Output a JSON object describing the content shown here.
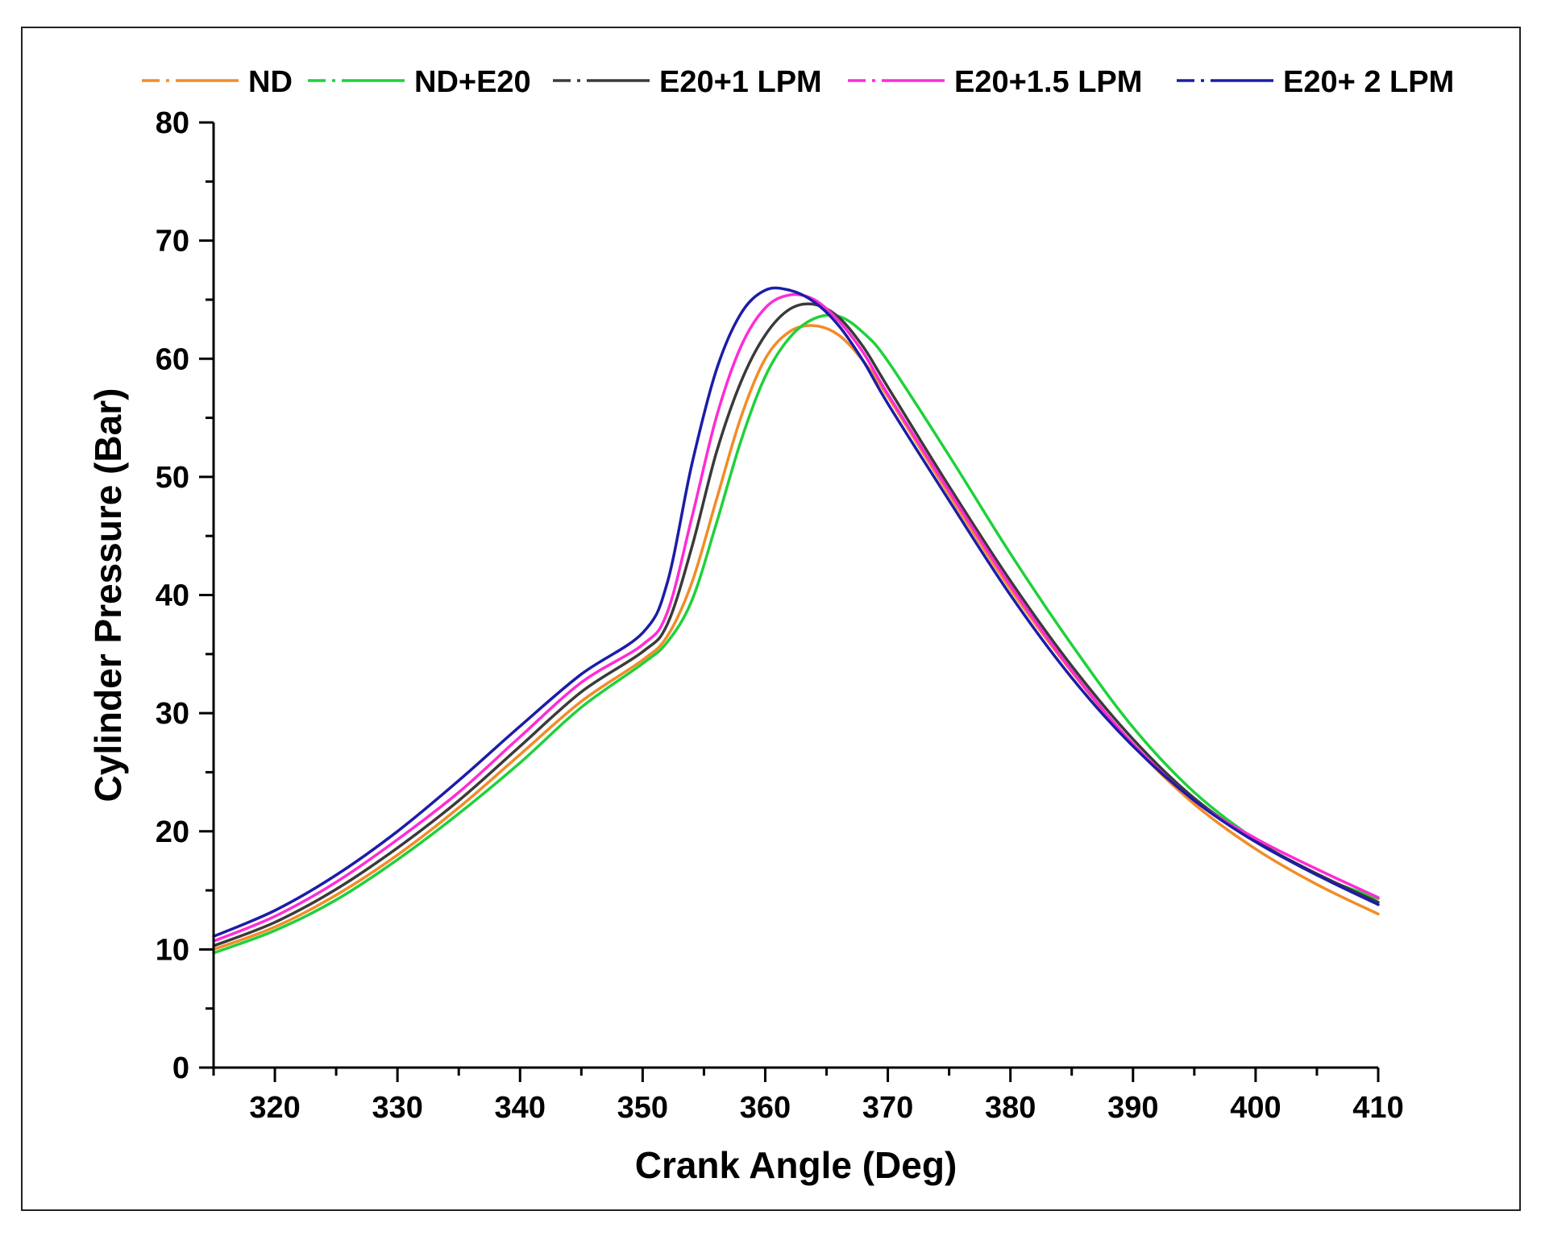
{
  "chart_data": {
    "type": "line",
    "title": "",
    "xlabel": "Crank Angle (Deg)",
    "ylabel": "Cylinder Pressure (Bar)",
    "xlim": [
      315,
      410
    ],
    "ylim": [
      0,
      80
    ],
    "xticks": [
      320,
      330,
      340,
      350,
      360,
      370,
      380,
      390,
      400,
      410
    ],
    "yticks": [
      0,
      10,
      20,
      30,
      40,
      50,
      60,
      70,
      80
    ],
    "grid": false,
    "legend_position": "top",
    "series": [
      {
        "name": "ND",
        "color": "#f28c28",
        "x": [
          315,
          320,
          325,
          330,
          335,
          340,
          345,
          350,
          352,
          354,
          356,
          358,
          360,
          362,
          364,
          366,
          368,
          370,
          375,
          380,
          385,
          390,
          395,
          400,
          405,
          410
        ],
        "y": [
          10,
          11.9,
          14.6,
          18.0,
          22.0,
          26.5,
          31.0,
          34.5,
          36.5,
          41,
          48,
          55,
          60,
          62.3,
          62.8,
          62.0,
          59.8,
          56.8,
          48.5,
          40.5,
          33.5,
          27.3,
          22.3,
          18.5,
          15.5,
          13.0
        ]
      },
      {
        "name": "ND+E20",
        "color": "#1fd13a",
        "x": [
          315,
          320,
          325,
          330,
          335,
          340,
          345,
          350,
          352,
          354,
          356,
          358,
          360,
          362,
          364,
          366,
          368,
          370,
          375,
          380,
          385,
          390,
          395,
          400,
          405,
          410
        ],
        "y": [
          9.7,
          11.6,
          14.2,
          17.6,
          21.5,
          25.8,
          30.5,
          34.2,
          36,
          39.5,
          46,
          53,
          58.5,
          61.8,
          63.4,
          63.6,
          62.2,
          59.8,
          51.8,
          43.5,
          35.8,
          28.8,
          23.3,
          19.3,
          16.3,
          14.3
        ]
      },
      {
        "name": "E20+1 LPM",
        "color": "#3a3a3a",
        "x": [
          315,
          320,
          325,
          330,
          335,
          340,
          345,
          350,
          352,
          354,
          356,
          358,
          360,
          362,
          364,
          366,
          368,
          370,
          375,
          380,
          385,
          390,
          395,
          400,
          405,
          410
        ],
        "y": [
          10.3,
          12.3,
          15.1,
          18.6,
          22.6,
          27.2,
          31.8,
          35.2,
          37.5,
          44,
          52,
          58,
          62,
          64.2,
          64.6,
          63.5,
          61.0,
          57.6,
          49.2,
          41.2,
          34.0,
          27.8,
          22.8,
          19.2,
          16.4,
          14.0
        ]
      },
      {
        "name": "E20+1.5 LPM",
        "color": "#ff2bd6",
        "x": [
          315,
          320,
          325,
          330,
          335,
          340,
          345,
          350,
          352,
          354,
          356,
          358,
          360,
          362,
          364,
          366,
          368,
          370,
          375,
          380,
          385,
          390,
          395,
          400,
          405,
          410
        ],
        "y": [
          10.7,
          12.8,
          15.7,
          19.3,
          23.3,
          28.0,
          32.6,
          35.8,
          38.5,
          46.5,
          55,
          61,
          64.3,
          65.4,
          65.0,
          63.2,
          60.5,
          57.0,
          48.8,
          40.8,
          33.6,
          27.4,
          22.6,
          19.4,
          16.8,
          14.4
        ]
      },
      {
        "name": "E20+ 2 LPM",
        "color": "#1c1ca8",
        "x": [
          315,
          320,
          325,
          330,
          335,
          340,
          345,
          350,
          352,
          354,
          356,
          358,
          360,
          362,
          364,
          366,
          368,
          370,
          375,
          380,
          385,
          390,
          395,
          400,
          405,
          410
        ],
        "y": [
          11.1,
          13.3,
          16.3,
          20.0,
          24.3,
          28.9,
          33.3,
          36.8,
          41,
          51,
          59,
          63.8,
          65.8,
          65.8,
          64.8,
          62.8,
          59.8,
          56.2,
          48.0,
          40.0,
          33.0,
          27.2,
          22.6,
          19.1,
          16.3,
          13.8
        ]
      }
    ]
  }
}
